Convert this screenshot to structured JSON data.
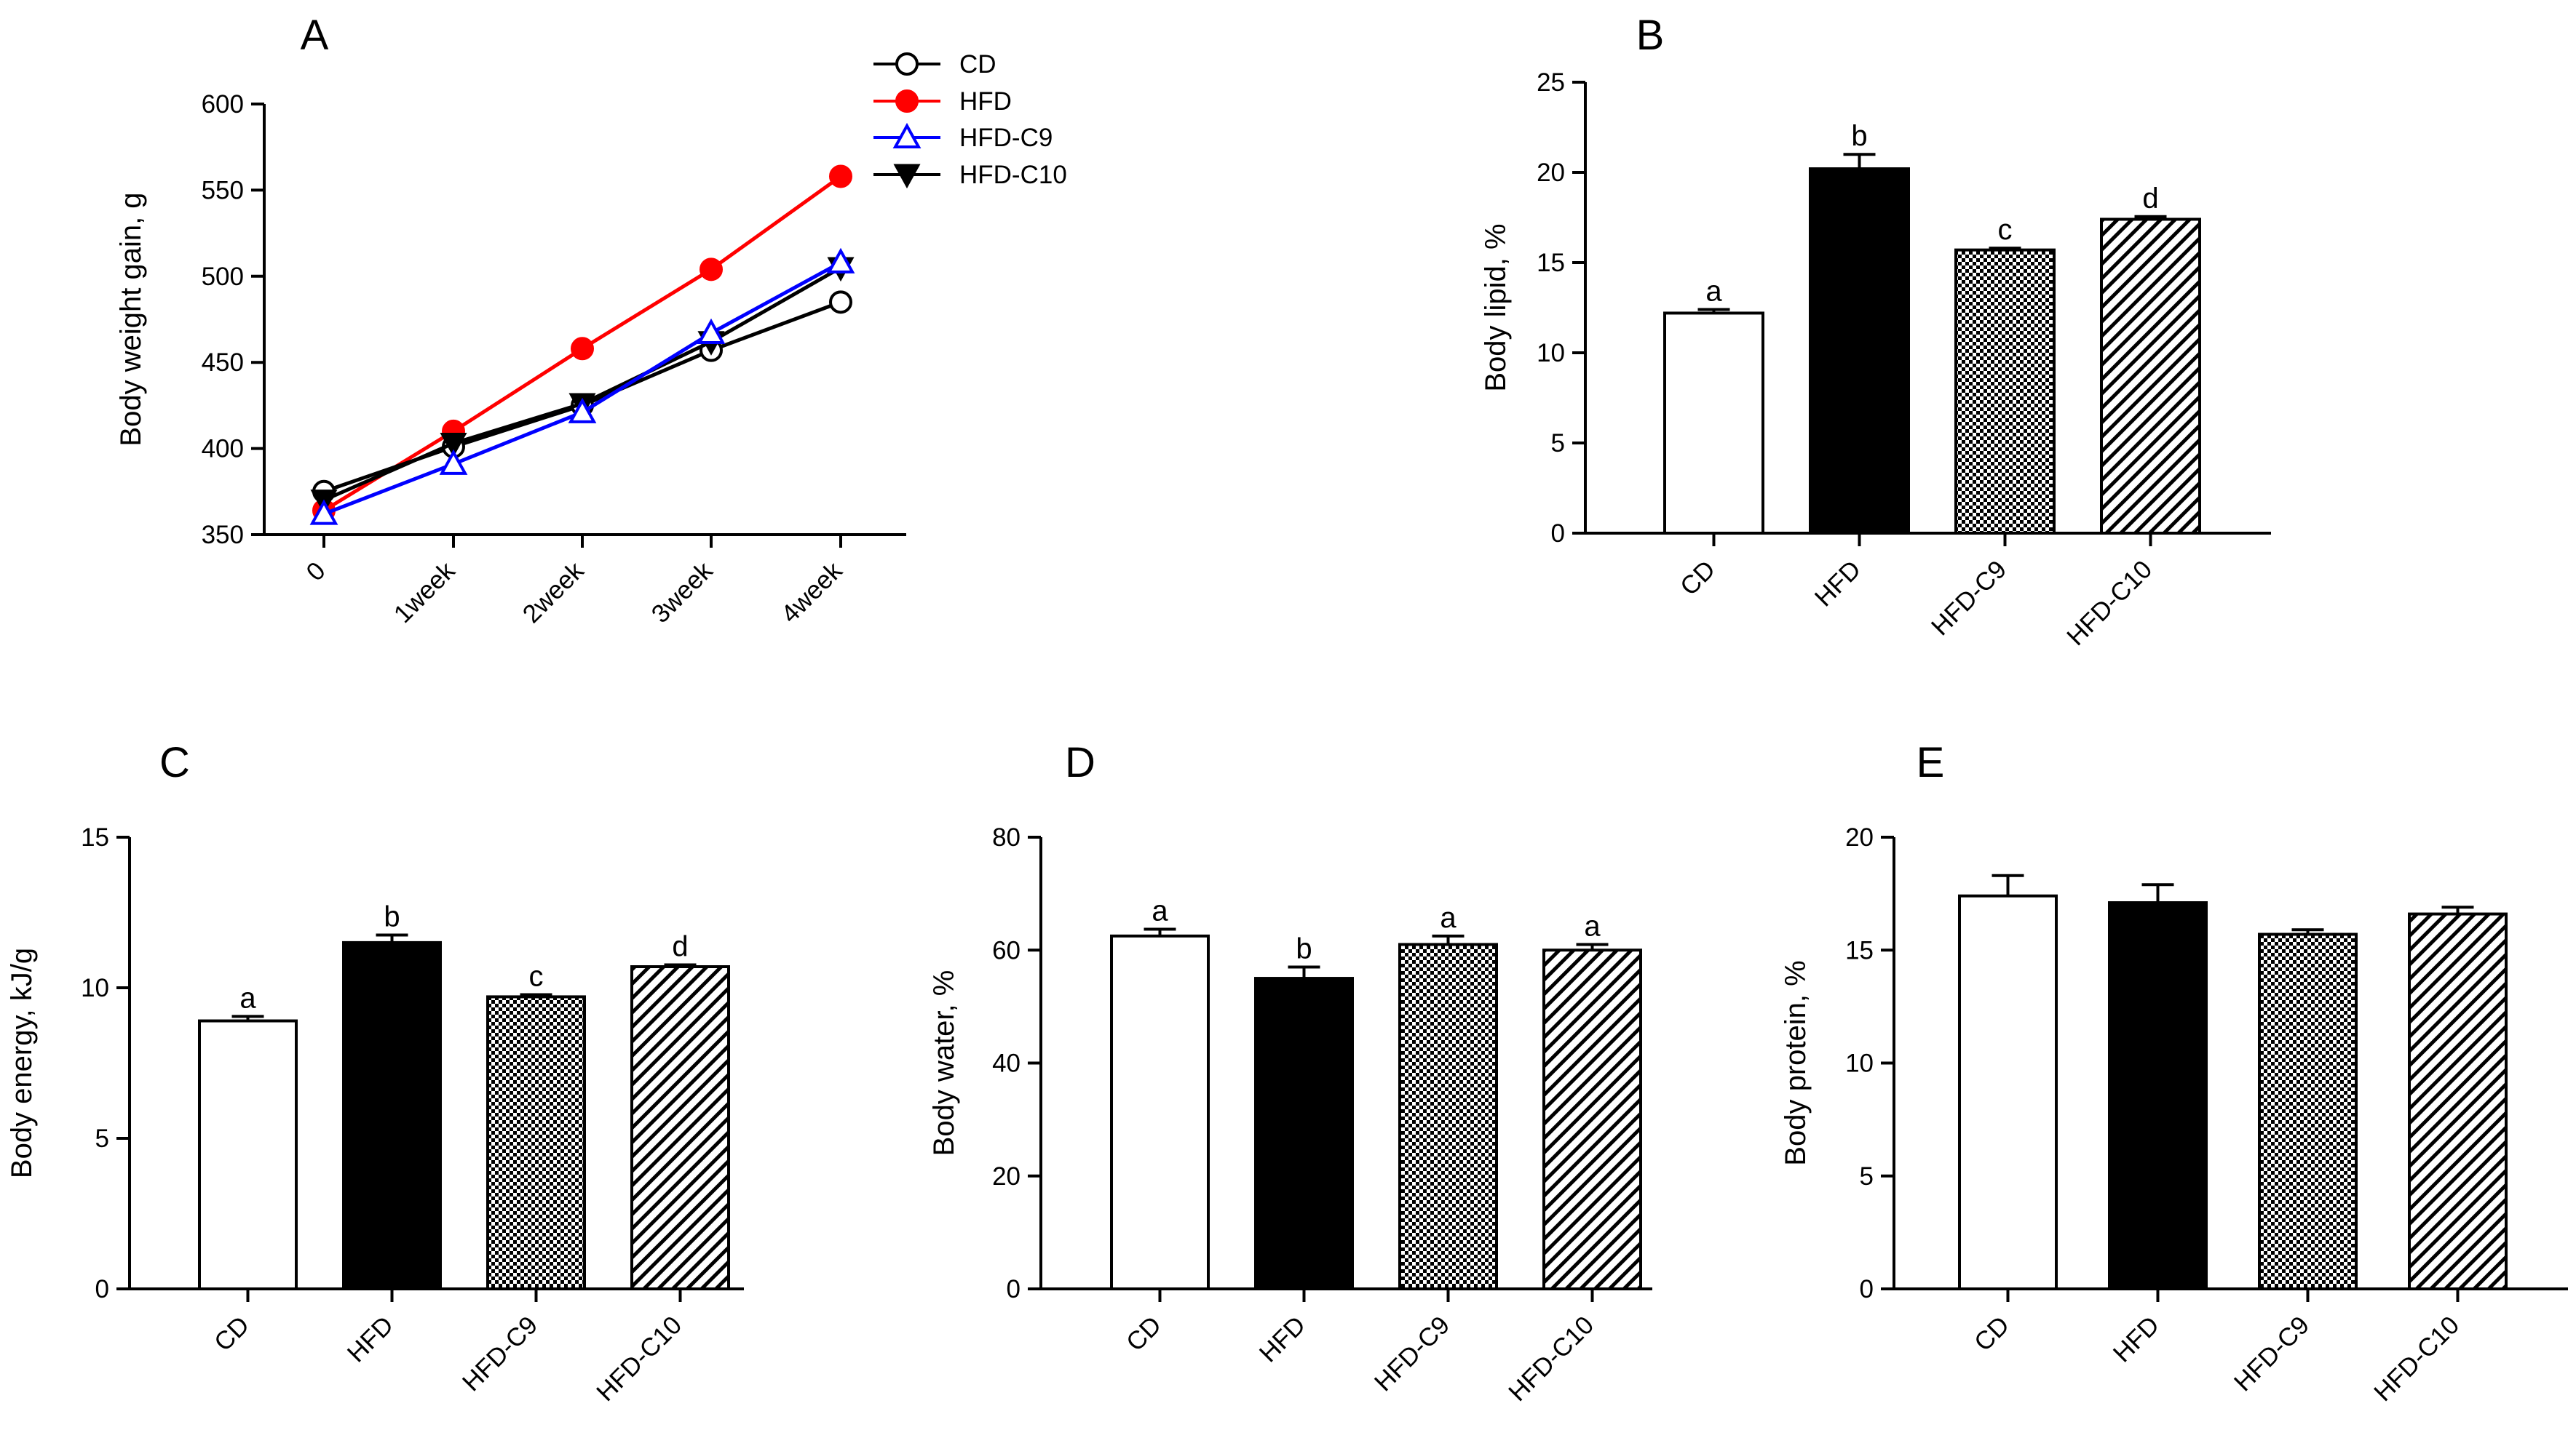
{
  "figure": {
    "panels": [
      "A",
      "B",
      "C",
      "D",
      "E"
    ]
  },
  "chart_data": [
    {
      "id": "A",
      "type": "line",
      "panel_label": "A",
      "ylabel": "Body weight gain, g",
      "xlabel": "",
      "categories": [
        "0",
        "1week",
        "2week",
        "3week",
        "4week"
      ],
      "ylim": [
        350,
        600
      ],
      "yticks": [
        350,
        400,
        450,
        500,
        550,
        600
      ],
      "legend_position": "top-right",
      "series": [
        {
          "name": "CD",
          "color": "#000000",
          "marker": "circle-open",
          "values": [
            375,
            401,
            425,
            457,
            485
          ]
        },
        {
          "name": "HFD",
          "color": "#ff0000",
          "marker": "circle-filled",
          "values": [
            364,
            410,
            458,
            504,
            558
          ]
        },
        {
          "name": "HFD-C9",
          "color": "#0000ff",
          "marker": "triangle-up-open",
          "values": [
            362,
            391,
            421,
            467,
            508
          ]
        },
        {
          "name": "HFD-C10",
          "color": "#000000",
          "marker": "triangle-down-filled",
          "values": [
            370,
            403,
            426,
            462,
            505
          ]
        }
      ]
    },
    {
      "id": "B",
      "type": "bar",
      "panel_label": "B",
      "ylabel": "Body lipid, %",
      "categories": [
        "CD",
        "HFD",
        "HFD-C9",
        "HFD-C10"
      ],
      "values": [
        12.2,
        20.2,
        15.7,
        17.4
      ],
      "errors": [
        0.2,
        0.8,
        0.1,
        0.15
      ],
      "significance": [
        "a",
        "b",
        "c",
        "d"
      ],
      "ylim": [
        0,
        25
      ],
      "yticks": [
        0,
        5,
        10,
        15,
        20,
        25
      ]
    },
    {
      "id": "C",
      "type": "bar",
      "panel_label": "C",
      "ylabel": "Body energy, kJ/g",
      "categories": [
        "CD",
        "HFD",
        "HFD-C9",
        "HFD-C10"
      ],
      "values": [
        8.9,
        11.5,
        9.7,
        10.7
      ],
      "errors": [
        0.15,
        0.25,
        0.07,
        0.06
      ],
      "significance": [
        "a",
        "b",
        "c",
        "d"
      ],
      "ylim": [
        0,
        15
      ],
      "yticks": [
        0,
        5,
        10,
        15
      ]
    },
    {
      "id": "D",
      "type": "bar",
      "panel_label": "D",
      "ylabel": "Body water, %",
      "categories": [
        "CD",
        "HFD",
        "HFD-C9",
        "HFD-C10"
      ],
      "values": [
        62.5,
        55.0,
        61.0,
        60.0
      ],
      "errors": [
        1.2,
        2.0,
        1.5,
        1.0
      ],
      "significance": [
        "a",
        "b",
        "a",
        "a"
      ],
      "ylim": [
        0,
        80
      ],
      "yticks": [
        0,
        20,
        40,
        60,
        80
      ]
    },
    {
      "id": "E",
      "type": "bar",
      "panel_label": "E",
      "ylabel": "Body protein, %",
      "categories": [
        "CD",
        "HFD",
        "HFD-C9",
        "HFD-C10"
      ],
      "values": [
        17.4,
        17.1,
        15.7,
        16.6
      ],
      "errors": [
        0.9,
        0.8,
        0.2,
        0.3
      ],
      "significance": [
        "",
        "",
        "",
        ""
      ],
      "ylim": [
        0,
        20
      ],
      "yticks": [
        0,
        5,
        10,
        15,
        20
      ]
    }
  ]
}
